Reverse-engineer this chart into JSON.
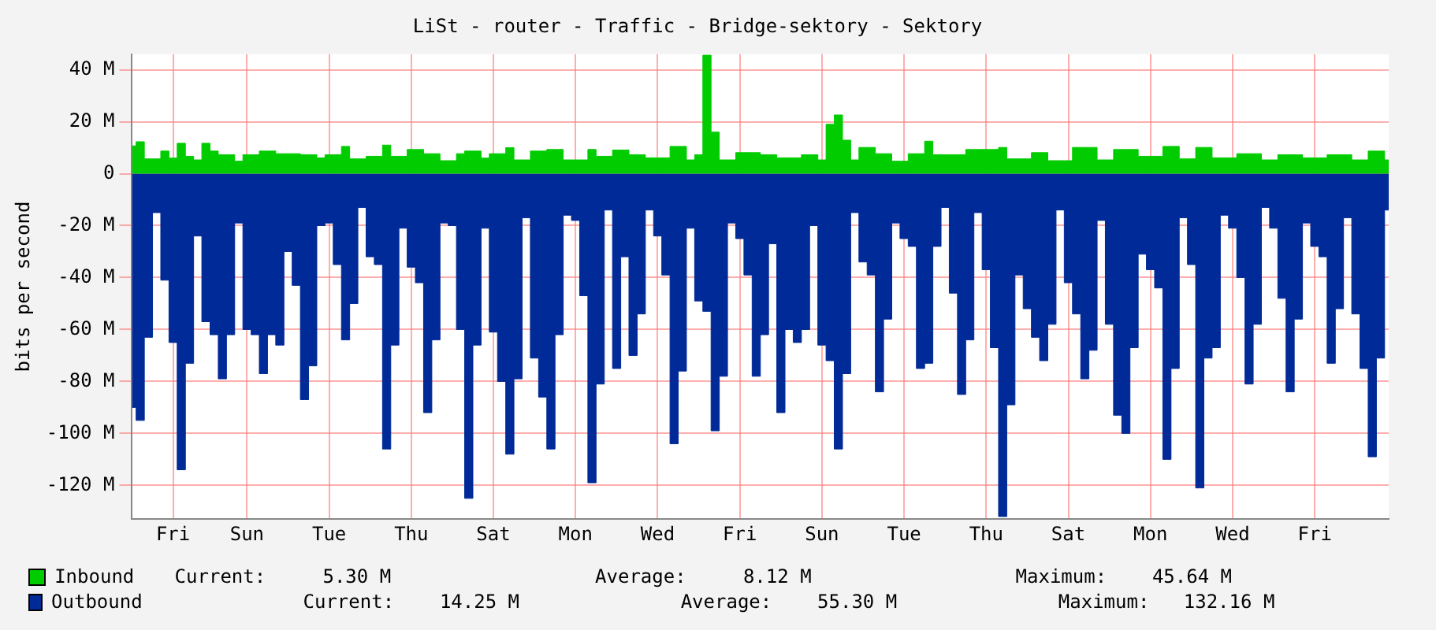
{
  "chart_data": {
    "type": "area",
    "title": "LiSt - router - Traffic - Bridge-sektory - Sektory",
    "ylabel": "bits per second",
    "categories": [
      null,
      null,
      null,
      null,
      null,
      "Fri",
      null,
      null,
      null,
      null,
      null,
      null,
      null,
      null,
      "Sun",
      null,
      null,
      null,
      null,
      null,
      null,
      null,
      null,
      null,
      "Tue",
      null,
      null,
      null,
      null,
      null,
      null,
      null,
      null,
      null,
      "Thu",
      null,
      null,
      null,
      null,
      null,
      null,
      null,
      null,
      null,
      "Sat",
      null,
      null,
      null,
      null,
      null,
      null,
      null,
      null,
      null,
      "Mon",
      null,
      null,
      null,
      null,
      null,
      null,
      null,
      null,
      null,
      "Wed",
      null,
      null,
      null,
      null,
      null,
      null,
      null,
      null,
      null,
      "Fri",
      null,
      null,
      null,
      null,
      null,
      null,
      null,
      null,
      null,
      "Sun",
      null,
      null,
      null,
      null,
      null,
      null,
      null,
      null,
      null,
      "Tue",
      null,
      null,
      null,
      null,
      null,
      null,
      null,
      null,
      null,
      "Thu",
      null,
      null,
      null,
      null,
      null,
      null,
      null,
      null,
      null,
      "Sat",
      null,
      null,
      null,
      null,
      null,
      null,
      null,
      null,
      null,
      "Mon",
      null,
      null,
      null,
      null,
      null,
      null,
      null,
      null,
      null,
      "Wed",
      null,
      null,
      null,
      null,
      null,
      null,
      null,
      null,
      null,
      "Fri",
      null,
      null,
      null,
      null,
      null,
      null,
      null,
      null,
      null
    ],
    "ylim": [
      -133,
      46
    ],
    "yticks": [
      {
        "value": 40,
        "label": "40 M"
      },
      {
        "value": 20,
        "label": "20 M"
      },
      0,
      {
        "value": -20,
        "label": "-20 M"
      },
      {
        "value": -40,
        "label": "-40 M"
      },
      {
        "value": -60,
        "label": "-60 M"
      },
      {
        "value": -80,
        "label": "-80 M"
      },
      {
        "value": -100,
        "label": "-100 M"
      },
      {
        "value": -120,
        "label": "-120 M"
      }
    ],
    "grid": true,
    "legend": "bottom",
    "series": [
      {
        "name": "Inbound",
        "color": "#00cc00",
        "values": [
          10.7,
          12.3,
          5.7,
          5.7,
          8.7,
          6,
          11.7,
          6.7,
          5.3,
          11.7,
          8.7,
          7.3,
          7.3,
          4.8,
          7.3,
          7.3,
          8.7,
          8.7,
          7.7,
          7.7,
          7.7,
          7.3,
          7.3,
          6.1,
          7.3,
          7.3,
          10.5,
          5.7,
          5.7,
          6.7,
          6.7,
          11,
          6.7,
          6.7,
          9.3,
          9.3,
          7.7,
          7.7,
          5,
          5,
          7.7,
          8.7,
          8.7,
          6,
          7.7,
          7.7,
          10,
          5.3,
          5.3,
          8.7,
          8.7,
          9.3,
          9.3,
          5.3,
          5.3,
          5.3,
          9.3,
          6.7,
          6.7,
          9.1,
          9.1,
          7.3,
          7.3,
          6.1,
          6.1,
          6.1,
          10.5,
          10.5,
          5.3,
          7.3,
          45.6,
          16,
          5.3,
          5.3,
          8.1,
          8.1,
          8.1,
          7.3,
          7.3,
          6.1,
          6.1,
          6.1,
          7.3,
          7.3,
          5.3,
          19,
          22.6,
          12.9,
          5.3,
          10.1,
          10.1,
          7.7,
          7.7,
          4.8,
          4.8,
          7.7,
          7.7,
          12.5,
          7.3,
          7.3,
          7.3,
          7.3,
          9.3,
          9.3,
          9.3,
          9.3,
          10.1,
          5.7,
          5.7,
          5.7,
          8.1,
          8.1,
          5,
          5,
          5,
          10.1,
          10.1,
          10.1,
          5.3,
          5.3,
          9.3,
          9.3,
          9.3,
          6.7,
          6.7,
          6.7,
          10.5,
          10.5,
          5.7,
          5.7,
          10.1,
          10.1,
          6.1,
          6.1,
          6.1,
          7.7,
          7.7,
          7.7,
          5.3,
          5.3,
          7.3,
          7.3,
          7.3,
          6.1,
          6.1,
          6.1,
          7.3,
          7.3,
          7.3,
          5.3,
          5.3,
          8.7,
          8.7,
          5.3
        ]
      },
      {
        "name": "Outbound",
        "color": "#002a97",
        "values": [
          -90,
          -95,
          -63,
          -15,
          -41,
          -65,
          -114,
          -73,
          -24,
          -57,
          -62,
          -79,
          -62,
          -19,
          -60,
          -62,
          -77,
          -62,
          -66,
          -30,
          -43,
          -87,
          -74,
          -20,
          -19,
          -35,
          -64,
          -50,
          -13,
          -32,
          -35,
          -106,
          -66,
          -21,
          -36,
          -42,
          -92,
          -64,
          -19,
          -20,
          -60,
          -125,
          -66,
          -21,
          -61,
          -80,
          -108,
          -79,
          -17,
          -71,
          -86,
          -106,
          -62,
          -16,
          -18,
          -47,
          -119,
          -81,
          -14,
          -75,
          -32,
          -70,
          -54,
          -14,
          -24,
          -39,
          -104,
          -76,
          -21,
          -49,
          -53,
          -99,
          -78,
          -19,
          -25,
          -39,
          -78,
          -62,
          -27,
          -92,
          -60,
          -65,
          -60,
          -20,
          -66,
          -72,
          -106,
          -77,
          -15,
          -34,
          -39,
          -84,
          -56,
          -19,
          -25,
          -28,
          -75,
          -73,
          -28,
          -13,
          -46,
          -85,
          -64,
          -15,
          -37,
          -67,
          -132,
          -89,
          -39,
          -52,
          -63,
          -72,
          -58,
          -14,
          -42,
          -54,
          -79,
          -68,
          -18,
          -58,
          -93,
          -100,
          -67,
          -31,
          -37,
          -44,
          -110,
          -75,
          -17,
          -35,
          -121,
          -71,
          -67,
          -16,
          -21,
          -40,
          -81,
          -58,
          -13,
          -21,
          -48,
          -84,
          -56,
          -19,
          -28,
          -32,
          -73,
          -52,
          -17,
          -54,
          -75,
          -109,
          -71,
          -14
        ]
      }
    ],
    "annotations": [
      "Current:     5.30 M",
      "Average:     8.12 M",
      "Maximum:    45.64 M",
      "Current:    14.25 M",
      "Average:    55.30 M",
      "Maximum:   132.16 M"
    ]
  }
}
